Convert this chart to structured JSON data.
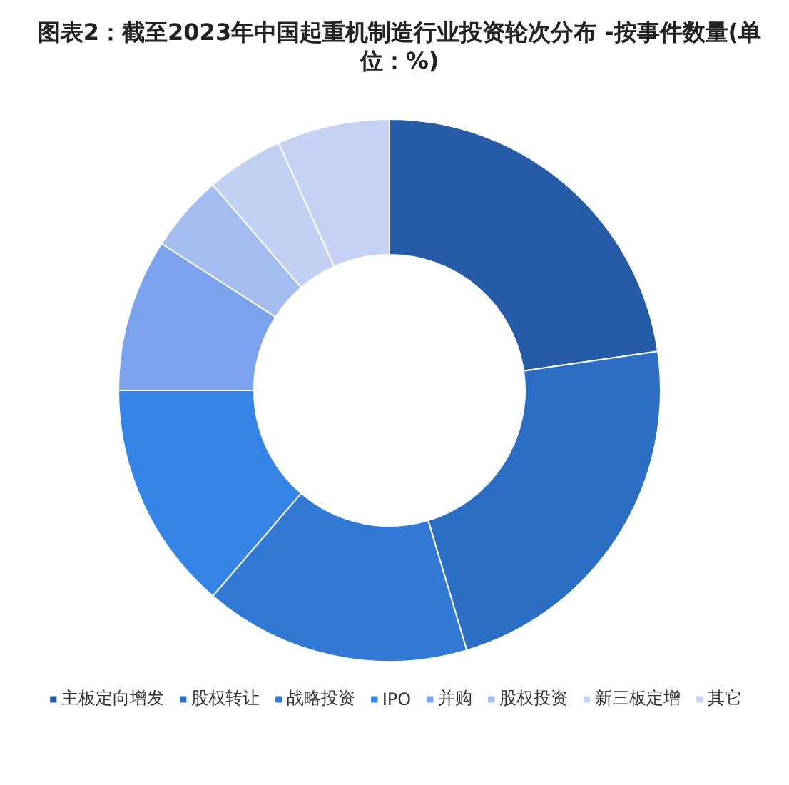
{
  "chart_data": {
    "type": "donut",
    "title": "图表2：截至2023年中国起重机制造行业投资轮次分布 -按事件数量(单位：%)",
    "categories": [
      "主板定向增发",
      "股权转让",
      "战略投资",
      "IPO",
      "并购",
      "股权投资",
      "新三板定增",
      "其它"
    ],
    "values": [
      22.7,
      22.7,
      15.9,
      13.7,
      9.1,
      4.6,
      4.6,
      6.7
    ],
    "colors": [
      "#265ba8",
      "#2c6ec4",
      "#3279d6",
      "#3584e6",
      "#7ba2ec",
      "#a4bcf0",
      "#c2d0f3",
      "#c6d2f4"
    ],
    "legend": "bottom"
  }
}
